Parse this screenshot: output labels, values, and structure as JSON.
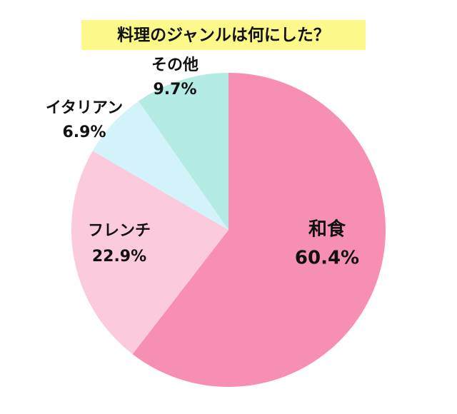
{
  "chart_data": {
    "type": "pie",
    "title": "料理のジャンルは何にした？",
    "categories": [
      "和食",
      "フレンチ",
      "イタリアン",
      "その他"
    ],
    "values": [
      60.4,
      22.9,
      6.9,
      9.7
    ],
    "value_labels": [
      "60.4%",
      "22.9%",
      "6.9%",
      "9.7%"
    ],
    "colors": [
      "#f78fb4",
      "#fccadd",
      "#d3f3fb",
      "#b4ece3"
    ]
  }
}
